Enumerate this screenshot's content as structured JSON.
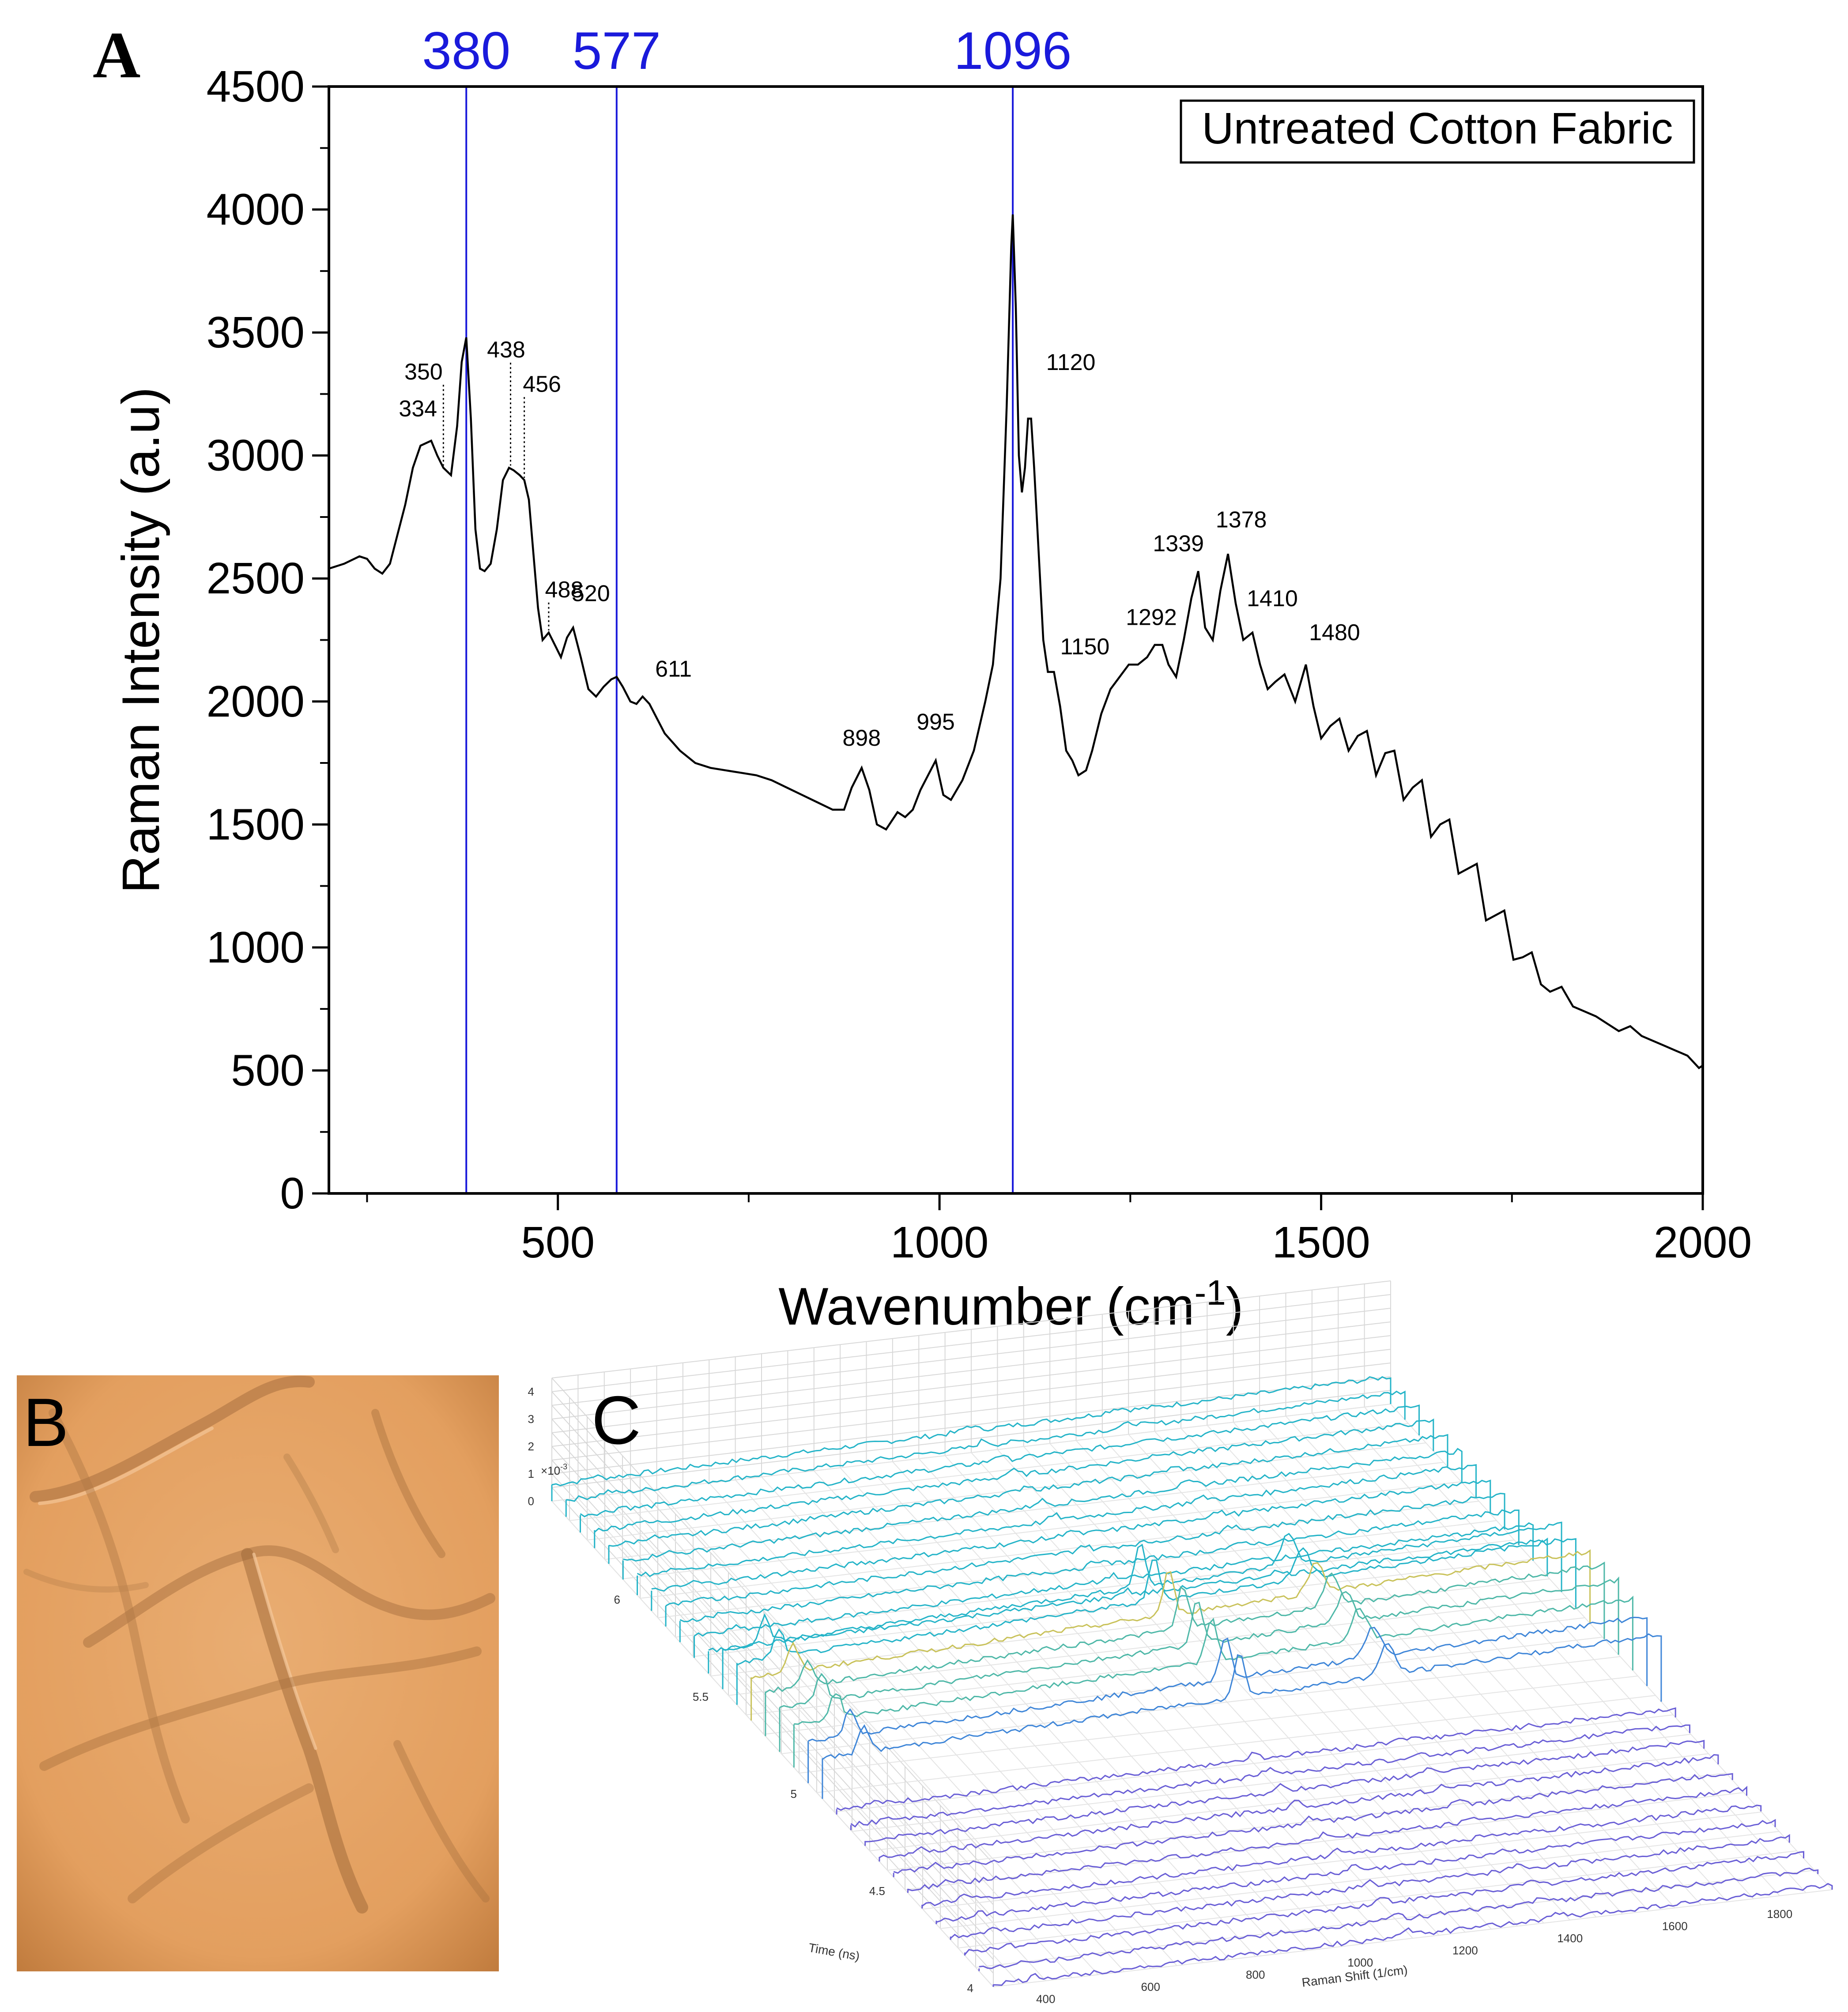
{
  "panel_a": {
    "letter": "A",
    "chart_data": {
      "type": "line",
      "title": "",
      "xlabel": "Wavenumber (cm",
      "xlabel_sup": "-1",
      "xlabel_close": ")",
      "ylabel": "Raman Intensity (a.u)",
      "xlim": [
        200,
        2000
      ],
      "ylim": [
        0,
        4500
      ],
      "xticks": [
        500,
        1000,
        1500,
        2000
      ],
      "yticks": [
        0,
        500,
        1000,
        1500,
        2000,
        2500,
        3000,
        3500,
        4000,
        4500
      ],
      "legend": "Untreated Cotton Fabric",
      "reference_lines": [
        {
          "x": 380,
          "label": "380"
        },
        {
          "x": 577,
          "label": "577"
        },
        {
          "x": 1096,
          "label": "1096"
        }
      ],
      "peak_labels": [
        {
          "label": "334",
          "x": 334,
          "y": 3060
        },
        {
          "label": "350",
          "x": 350,
          "y": 2950
        },
        {
          "label": "438",
          "x": 438,
          "y": 2950
        },
        {
          "label": "456",
          "x": 456,
          "y": 2900
        },
        {
          "label": "488",
          "x": 488,
          "y": 2280
        },
        {
          "label": "520",
          "x": 520,
          "y": 2300
        },
        {
          "label": "611",
          "x": 611,
          "y": 2020
        },
        {
          "label": "898",
          "x": 898,
          "y": 1730
        },
        {
          "label": "995",
          "x": 995,
          "y": 1760
        },
        {
          "label": "1120",
          "x": 1120,
          "y": 3150
        },
        {
          "label": "1150",
          "x": 1150,
          "y": 2120
        },
        {
          "label": "1292",
          "x": 1292,
          "y": 2230
        },
        {
          "label": "1339",
          "x": 1339,
          "y": 2530
        },
        {
          "label": "1378",
          "x": 1378,
          "y": 2600
        },
        {
          "label": "1410",
          "x": 1410,
          "y": 2280
        },
        {
          "label": "1480",
          "x": 1480,
          "y": 2150
        }
      ],
      "series": [
        {
          "name": "Untreated Cotton Fabric",
          "x": [
            200,
            220,
            240,
            250,
            260,
            270,
            280,
            290,
            300,
            310,
            320,
            334,
            342,
            350,
            360,
            368,
            374,
            380,
            386,
            392,
            398,
            404,
            412,
            420,
            428,
            436,
            442,
            450,
            456,
            462,
            468,
            474,
            480,
            488,
            496,
            504,
            512,
            520,
            530,
            540,
            550,
            560,
            570,
            577,
            585,
            595,
            603,
            611,
            620,
            630,
            640,
            660,
            680,
            700,
            720,
            740,
            760,
            780,
            800,
            820,
            840,
            860,
            875,
            885,
            898,
            908,
            918,
            930,
            945,
            955,
            965,
            975,
            985,
            995,
            1005,
            1015,
            1030,
            1045,
            1060,
            1070,
            1080,
            1088,
            1094,
            1096,
            1100,
            1104,
            1108,
            1112,
            1116,
            1120,
            1124,
            1130,
            1136,
            1142,
            1150,
            1158,
            1166,
            1174,
            1182,
            1192,
            1200,
            1212,
            1224,
            1236,
            1248,
            1260,
            1272,
            1282,
            1292,
            1300,
            1310,
            1320,
            1330,
            1339,
            1348,
            1358,
            1368,
            1378,
            1388,
            1398,
            1410,
            1420,
            1430,
            1440,
            1452,
            1466,
            1480,
            1490,
            1500,
            1512,
            1524,
            1536,
            1548,
            1560,
            1572,
            1584,
            1596,
            1608,
            1620,
            1632,
            1644,
            1656,
            1668,
            1680,
            1692,
            1704,
            1716,
            1728,
            1740,
            1752,
            1764,
            1776,
            1788,
            1800,
            1815,
            1830,
            1845,
            1860,
            1875,
            1890,
            1905,
            1920,
            1935,
            1950,
            1965,
            1980,
            1995,
            2000
          ],
          "y": [
            2540,
            2560,
            2590,
            2580,
            2540,
            2520,
            2560,
            2680,
            2800,
            2950,
            3040,
            3060,
            3000,
            2950,
            2920,
            3120,
            3380,
            3480,
            3150,
            2700,
            2540,
            2530,
            2560,
            2700,
            2900,
            2950,
            2940,
            2920,
            2900,
            2820,
            2600,
            2380,
            2250,
            2280,
            2230,
            2180,
            2260,
            2300,
            2180,
            2050,
            2020,
            2060,
            2090,
            2100,
            2060,
            2000,
            1990,
            2020,
            1990,
            1930,
            1870,
            1800,
            1750,
            1730,
            1720,
            1710,
            1700,
            1680,
            1650,
            1620,
            1590,
            1560,
            1560,
            1650,
            1730,
            1640,
            1500,
            1480,
            1550,
            1530,
            1560,
            1640,
            1700,
            1760,
            1620,
            1600,
            1680,
            1800,
            2000,
            2150,
            2500,
            3200,
            3850,
            3980,
            3600,
            3000,
            2850,
            2950,
            3150,
            3150,
            2950,
            2600,
            2250,
            2120,
            2120,
            1980,
            1800,
            1760,
            1700,
            1720,
            1800,
            1950,
            2050,
            2100,
            2150,
            2150,
            2180,
            2230,
            2230,
            2150,
            2100,
            2250,
            2420,
            2530,
            2300,
            2250,
            2450,
            2600,
            2400,
            2250,
            2280,
            2150,
            2050,
            2080,
            2110,
            2000,
            2150,
            1980,
            1850,
            1900,
            1930,
            1800,
            1860,
            1880,
            1700,
            1790,
            1800,
            1600,
            1650,
            1680,
            1450,
            1500,
            1520,
            1300,
            1320,
            1340,
            1110,
            1130,
            1150,
            950,
            960,
            980,
            850,
            820,
            840,
            760,
            740,
            720,
            690,
            660,
            680,
            640,
            620,
            600,
            580,
            560,
            510,
            520
          ]
        }
      ]
    }
  },
  "panel_b": {
    "letter": "B"
  },
  "panel_c": {
    "letter": "C",
    "z_exponent": "×10",
    "z_exponent_power": "-3",
    "chart_data": {
      "type": "line",
      "title": "",
      "xlabel": "Raman Shift (1/cm)",
      "ylabel": "Time (ns)",
      "zlabel": "",
      "xticks": [
        "400",
        "600",
        "800",
        "1000",
        "1200",
        "1400",
        "1600",
        "1800"
      ],
      "yticks": [
        "4",
        "4.5",
        "5",
        "5.5",
        "6"
      ],
      "zticks": [
        "0",
        "1",
        "2",
        "3",
        "4"
      ],
      "xlim": [
        300,
        1900
      ],
      "ylim": [
        4,
        6.5
      ],
      "zlim": [
        0,
        4.5
      ],
      "series_count": 32,
      "peak_positions": [
        380,
        1096,
        1378
      ]
    }
  }
}
